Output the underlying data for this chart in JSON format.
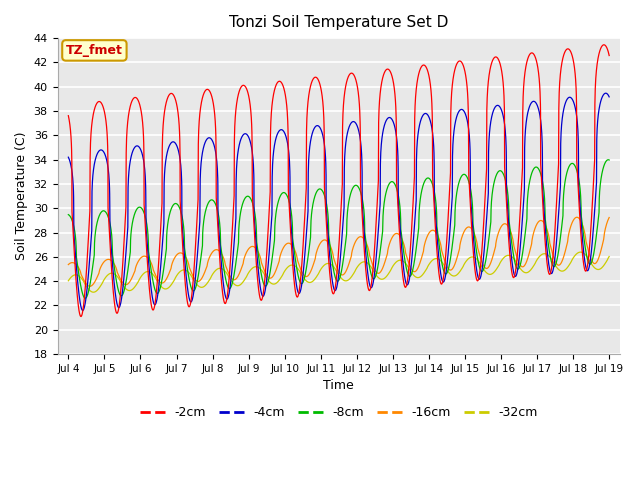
{
  "title": "Tonzi Soil Temperature Set D",
  "xlabel": "Time",
  "ylabel": "Soil Temperature (C)",
  "ylim": [
    18,
    44
  ],
  "annotation_text": "TZ_fmet",
  "annotation_color": "#cc0000",
  "annotation_bg": "#ffffcc",
  "annotation_border": "#cc9900",
  "series_colors": {
    "-2cm": "#ff0000",
    "-4cm": "#0000cc",
    "-8cm": "#00bb00",
    "-16cm": "#ff8800",
    "-32cm": "#cccc00"
  },
  "legend_entries": [
    "-2cm",
    "-4cm",
    "-8cm",
    "-16cm",
    "-32cm"
  ],
  "xtick_labels": [
    "Jul 4",
    "Jul 5",
    "Jul 6",
    "Jul 7",
    "Jul 8",
    "Jul 9",
    "Jul 10",
    "Jul 11",
    "Jul 12",
    "Jul 13",
    "Jul 14",
    "Jul 15",
    "Jul 16",
    "Jul 17",
    "Jul 18",
    "Jul 19"
  ],
  "ytick_values": [
    18,
    20,
    22,
    24,
    26,
    28,
    30,
    32,
    34,
    36,
    38,
    40,
    42,
    44
  ],
  "bg_color": "#e8e8e8",
  "grid_color": "#ffffff"
}
